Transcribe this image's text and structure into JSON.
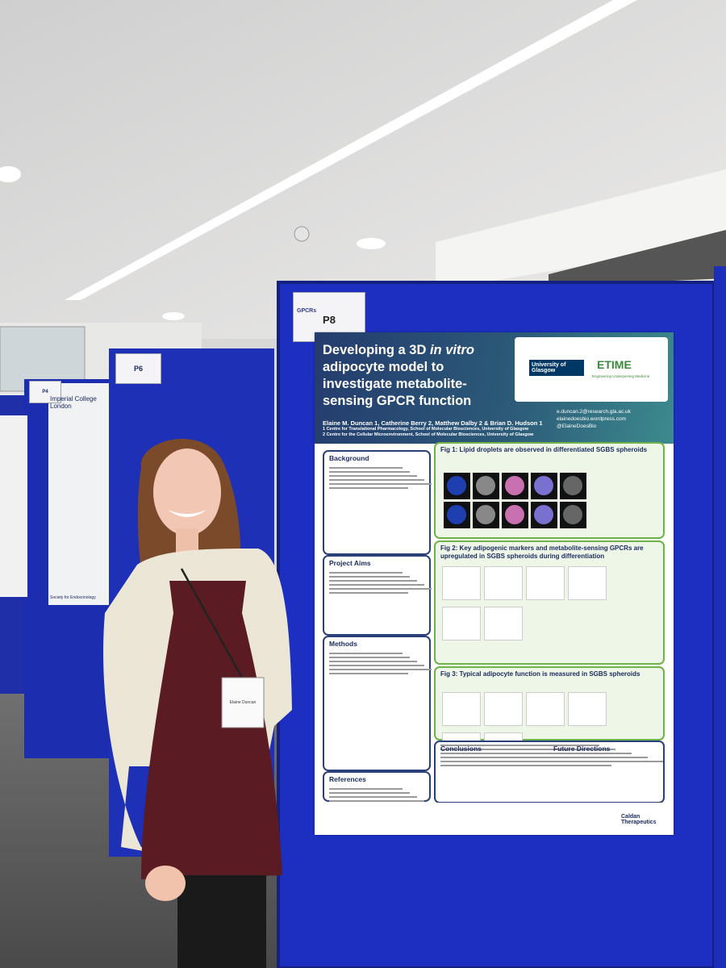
{
  "boards": [
    {
      "label": "P8"
    },
    {
      "label": "P6"
    },
    {
      "label": "P4"
    }
  ],
  "board_logo": "GPCRs",
  "side_poster": {
    "header": "Imperial College London",
    "footer": "Society for Endocrinology"
  },
  "poster": {
    "title_parts": [
      "Developing a 3D ",
      "in vitro",
      " adipocyte model to investigate metabolite-sensing GPCR function"
    ],
    "authors": "Elaine M. Duncan 1, Catherine Berry 2, Matthew Dalby 2 & Brian D. Hudson 1",
    "affiliations": [
      "1 Centre for Translational Pharmacology, School of Molecular Biosciences, University of Glasgow",
      "2 Centre for the Cellular Microenvironment, School of Molecular Biosciences, University of Glasgow"
    ],
    "logos": [
      "University of Glasgow",
      "ETIME",
      "Engineering Underpinning Medicine"
    ],
    "contacts": [
      "e.duncan.2@research.gla.ac.uk",
      "elainedoesbio.wordpress.com",
      "@ElaineDoesBio"
    ],
    "sections": [
      "Background",
      "Project Aims",
      "Methods",
      "References",
      "Conclusions",
      "Future Directions"
    ],
    "figures": [
      "Fig 1: Lipid droplets are observed in differentiated SGBS spheroids",
      "Fig 2: Key adipogenic markers and metabolite-sensing GPCRs are upregulated in SGBS spheroids during differentiation",
      "Fig 3: Typical adipocyte function is measured in SGBS spheroids"
    ],
    "sponsors": [
      "Caldan Therapeutics"
    ]
  },
  "badge": "Elaine Duncan"
}
